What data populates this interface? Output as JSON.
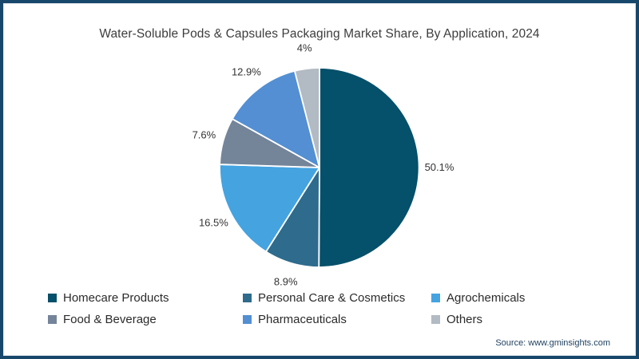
{
  "title": "Water-Soluble Pods & Capsules Packaging Market Share, By Application, 2024",
  "source": "Source: www.gminsights.com",
  "frame": {
    "border_color": "#17486b",
    "background": "#ffffff"
  },
  "chart_data": {
    "type": "pie",
    "title": "Water-Soluble Pods & Capsules Packaging Market Share, By Application, 2024",
    "unit": "%",
    "start_angle_deg": 0,
    "direction": "clockwise",
    "legend_position": "bottom",
    "slices": [
      {
        "label": "Homecare Products",
        "value": 50.1,
        "display": "50.1%",
        "color": "#05506a"
      },
      {
        "label": "Personal Care & Cosmetics",
        "value": 8.9,
        "display": "8.9%",
        "color": "#2e6b8c"
      },
      {
        "label": "Agrochemicals",
        "value": 16.5,
        "display": "16.5%",
        "color": "#45a3e0"
      },
      {
        "label": "Food & Beverage",
        "value": 7.6,
        "display": "7.6%",
        "color": "#74859a"
      },
      {
        "label": "Pharmaceuticals",
        "value": 12.9,
        "display": "12.9%",
        "color": "#538fd2"
      },
      {
        "label": "Others",
        "value": 4.0,
        "display": "4%",
        "color": "#b2bac3"
      }
    ],
    "label_color": "#333333",
    "separator_color": "#ffffff"
  }
}
